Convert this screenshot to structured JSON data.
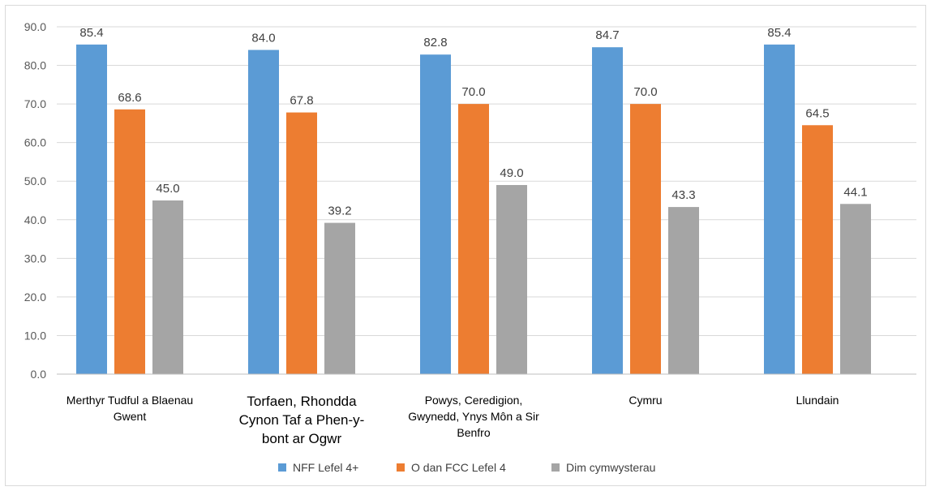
{
  "chart_data": {
    "type": "bar",
    "categories": [
      [
        "Merthyr Tudful a Blaenau",
        "Gwent"
      ],
      [
        "Torfaen, Rhondda",
        "Cynon Taf a Phen-y-",
        "bont ar Ogwr"
      ],
      [
        "Powys, Ceredigion,",
        "Gwynedd, Ynys Môn a Sir",
        "Benfro"
      ],
      [
        "Cymru"
      ],
      [
        "Llundain"
      ]
    ],
    "series": [
      {
        "name": "NFF Lefel 4+",
        "color": "#5b9bd5",
        "values": [
          85.4,
          84.0,
          82.8,
          84.7,
          85.4
        ]
      },
      {
        "name": "O dan FCC Lefel 4",
        "color": "#ed7d31",
        "values": [
          68.6,
          67.8,
          70.0,
          70.0,
          64.5
        ]
      },
      {
        "name": "Dim cymwysterau",
        "color": "#a5a5a5",
        "values": [
          45.0,
          39.2,
          49.0,
          43.3,
          44.1
        ]
      }
    ],
    "yticks": [
      "0.0",
      "10.0",
      "20.0",
      "30.0",
      "40.0",
      "50.0",
      "60.0",
      "70.0",
      "80.0",
      "90.0"
    ],
    "ylim": [
      0,
      90
    ],
    "grid": true,
    "legend": "bottom-center"
  }
}
